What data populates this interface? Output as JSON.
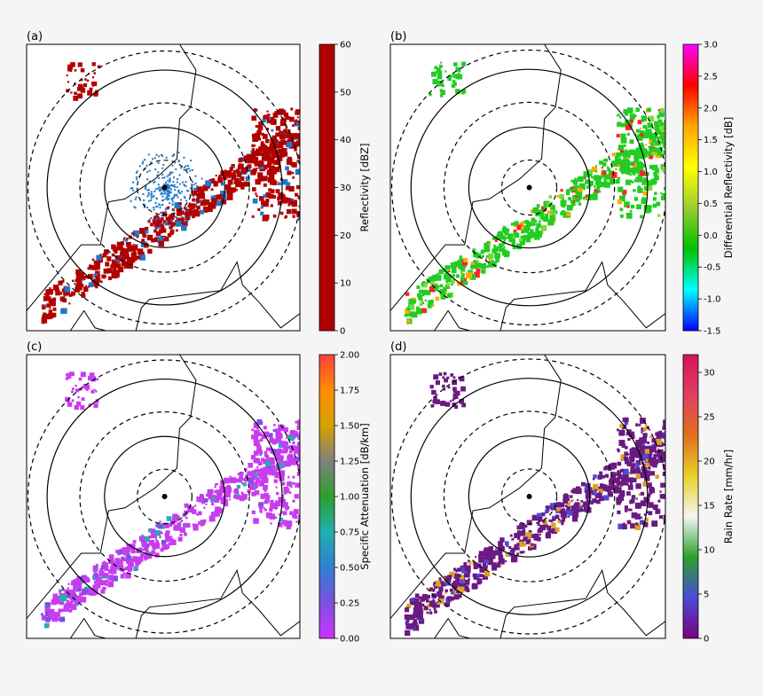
{
  "chart_data": [
    {
      "type": "heatmap",
      "panel_label": "(a)",
      "colorbar_label": "Reflectivity [dBZ]",
      "colorbar_ticks": [
        "0",
        "10",
        "20",
        "30",
        "40",
        "50",
        "60"
      ],
      "vmin": 0,
      "vmax": 60,
      "colormap": [
        "#b10000",
        "#b10000"
      ],
      "range_rings": {
        "solid": 2,
        "dashed": 3
      },
      "echo_colors": [
        "#b10000",
        "#1f78c8"
      ]
    },
    {
      "type": "heatmap",
      "panel_label": "(b)",
      "colorbar_label": "Differential Reflectivity [dB]",
      "colorbar_ticks": [
        "-1.5",
        "-1.0",
        "-0.5",
        "0.0",
        "0.5",
        "1.0",
        "1.5",
        "2.0",
        "2.5",
        "3.0"
      ],
      "vmin": -1.5,
      "vmax": 3.0,
      "colormap": [
        "#0000ff",
        "#00ffff",
        "#00c000",
        "#9acd32",
        "#ffff00",
        "#ffa500",
        "#ff0000",
        "#ff00ff"
      ],
      "range_rings": {
        "solid": 2,
        "dashed": 3
      },
      "echo_colors": [
        "#22cc22",
        "#7fd83a",
        "#ff2222",
        "#ffaa00"
      ]
    },
    {
      "type": "heatmap",
      "panel_label": "(c)",
      "colorbar_label": "Specific Attenuation [dB/km]",
      "colorbar_ticks": [
        "0.00",
        "0.25",
        "0.50",
        "0.75",
        "1.00",
        "1.25",
        "1.50",
        "1.75",
        "2.00"
      ],
      "vmin": 0.0,
      "vmax": 2.0,
      "colormap": [
        "#cc33ff",
        "#7d4fe0",
        "#2f7fd0",
        "#20b0b0",
        "#2ca02c",
        "#808080",
        "#d4a000",
        "#ff8c00",
        "#ff4040"
      ],
      "range_rings": {
        "solid": 2,
        "dashed": 3
      },
      "echo_colors": [
        "#c83cf0",
        "#7d4fe0",
        "#20b0b0"
      ]
    },
    {
      "type": "heatmap",
      "panel_label": "(d)",
      "colorbar_label": "Rain Rate [mm/hr]",
      "colorbar_ticks": [
        "0",
        "5",
        "10",
        "15",
        "20",
        "25",
        "30"
      ],
      "vmin": 0,
      "vmax": 32,
      "colormap": [
        "#7a0080",
        "#4b4bd6",
        "#2aa02a",
        "#f5f5f5",
        "#e7d22a",
        "#e07020",
        "#e04060",
        "#d4145a"
      ],
      "range_rings": {
        "solid": 2,
        "dashed": 3
      },
      "echo_colors": [
        "#6a1a80",
        "#4b4bd6",
        "#e0a020"
      ]
    }
  ]
}
